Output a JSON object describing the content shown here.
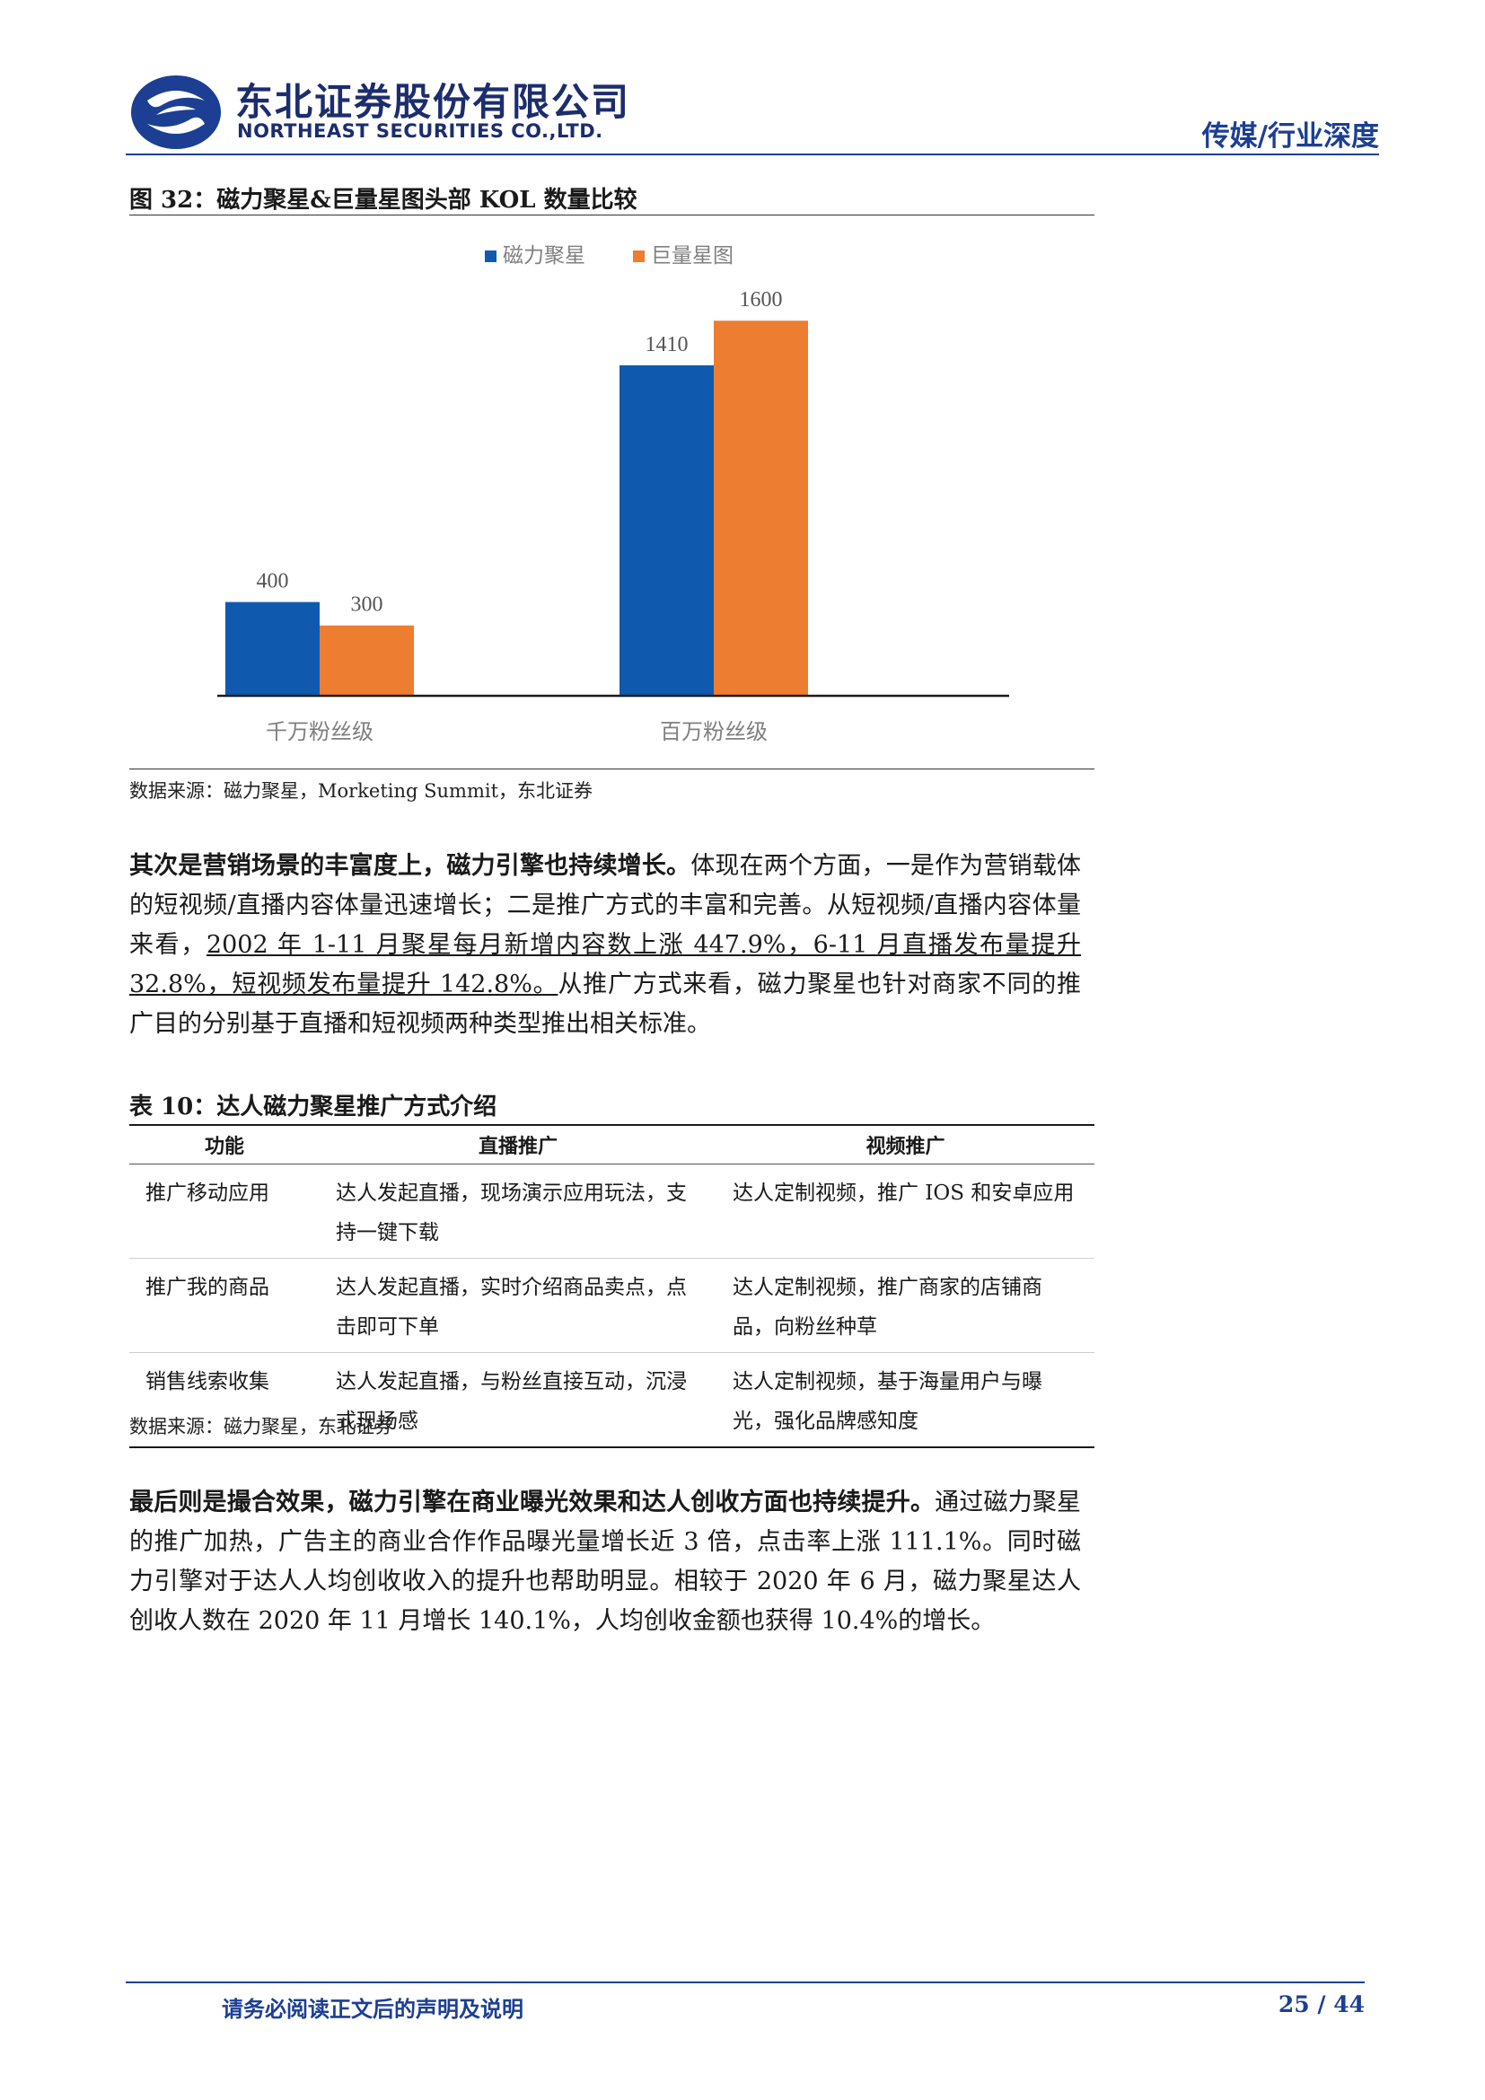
{
  "header": {
    "brand_cn": "东北证券股份有限公司",
    "brand_en": "NORTHEAST SECURITIES CO.,LTD.",
    "section": "传媒/行业深度",
    "accent_color": "#1c3f94"
  },
  "figure": {
    "title": "图 32：磁力聚星&巨量星图头部 KOL 数量比较",
    "source": "数据来源：磁力聚星，Morketing Summit，东北证券"
  },
  "chart_data": {
    "type": "bar",
    "title": "",
    "xlabel": "",
    "ylabel": "",
    "categories": [
      "千万粉丝级",
      "百万粉丝级"
    ],
    "series": [
      {
        "name": "磁力聚星",
        "values": [
          400,
          1410
        ],
        "color": "#0f5aaf"
      },
      {
        "name": "巨量星图",
        "values": [
          300,
          1600
        ],
        "color": "#ed7d31"
      }
    ],
    "ylim": [
      0,
      1800
    ],
    "grid": false,
    "legend": "top-center",
    "data_labels": true
  },
  "paragraph1": {
    "bold": "其次是营销场景的丰富度上，磁力引擎也持续增长。",
    "text1": "体现在两个方面，一是作为营销载体的短视频/直播内容体量迅速增长；二是推广方式的丰富和完善。从短视频/直播内容体量来看，",
    "underlined": "2002 年 1-11 月聚星每月新增内容数上涨 447.9%，6-11 月直播发布量提升 32.8%，短视频发布量提升 142.8%。",
    "text2": "从推广方式来看，磁力聚星也针对商家不同的推广目的分别基于直播和短视频两种类型推出相关标准。"
  },
  "table": {
    "title": "表 10：达人磁力聚星推广方式介绍",
    "headers": [
      "功能",
      "直播推广",
      "视频推广"
    ],
    "rows": [
      {
        "func": "推广移动应用",
        "live": "达人发起直播，现场演示应用玩法，支持一键下载",
        "video": "达人定制视频，推广 IOS 和安卓应用"
      },
      {
        "func": "推广我的商品",
        "live": "达人发起直播，实时介绍商品卖点，点击即可下单",
        "video": "达人定制视频，推广商家的店铺商品，向粉丝种草"
      },
      {
        "func": "销售线索收集",
        "live": "达人发起直播，与粉丝直接互动，沉浸式现场感",
        "video": "达人定制视频，基于海量用户与曝光，强化品牌感知度"
      }
    ],
    "source": "数据来源：磁力聚星，东北证券"
  },
  "paragraph2": {
    "bold": "最后则是撮合效果，磁力引擎在商业曝光效果和达人创收方面也持续提升。",
    "text": "通过磁力聚星的推广加热，广告主的商业合作作品曝光量增长近 3 倍，点击率上涨 111.1%。同时磁力引擎对于达人人均创收收入的提升也帮助明显。相较于 2020 年 6 月，磁力聚星达人创收人数在 2020 年 11 月增长 140.1%，人均创收金额也获得 10.4%的增长。"
  },
  "footer": {
    "note": "请务必阅读正文后的声明及说明",
    "page": "25 / 44"
  }
}
